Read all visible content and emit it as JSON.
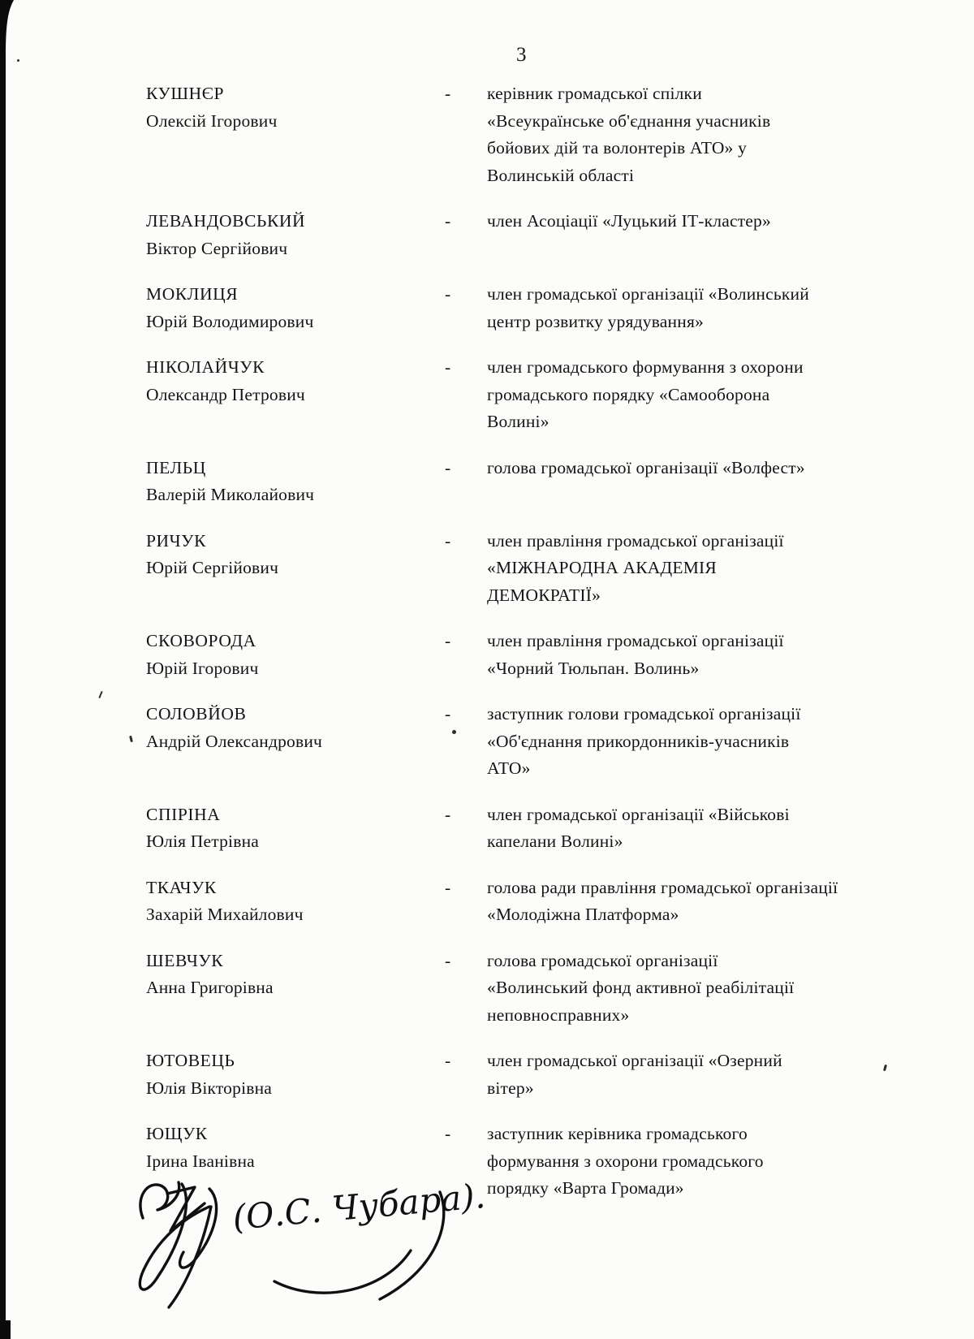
{
  "page": {
    "number": "3"
  },
  "colors": {
    "paper": "#fcfcfa",
    "ink": "#141414",
    "scan_edge": "#0b0b0b"
  },
  "entries": [
    {
      "surname": "КУШНЄР",
      "given": "Олексій Ігорович",
      "dash": "-",
      "role_lines": [
        "керівник громадської спілки",
        "«Всеукраїнське об'єднання учасників",
        "бойових дій та волонтерів АТО» у",
        "Волинській області"
      ]
    },
    {
      "surname": "ЛЕВАНДОВСЬКИЙ",
      "given": "Віктор Сергійович",
      "dash": "-",
      "role_lines": [
        "член Асоціації «Луцький ІТ-кластер»"
      ]
    },
    {
      "surname": "МОКЛИЦЯ",
      "given": "Юрій Володимирович",
      "dash": "-",
      "role_lines": [
        "член громадської організації «Волинський",
        "центр розвитку урядування»"
      ]
    },
    {
      "surname": "НІКОЛАЙЧУК",
      "given": "Олександр Петрович",
      "dash": "-",
      "role_lines": [
        "член громадського формування з охорони",
        "громадського порядку «Самооборона",
        "Волині»"
      ]
    },
    {
      "surname": "ПЕЛЬЦ",
      "given": "Валерій Миколайович",
      "dash": "-",
      "role_lines": [
        "голова громадської організації «Волфест»"
      ]
    },
    {
      "surname": "РИЧУК",
      "given": "Юрій Сергійович",
      "dash": "-",
      "role_lines": [
        "член правління громадської організації",
        "«МІЖНАРОДНА АКАДЕМІЯ",
        "ДЕМОКРАТІЇ»"
      ]
    },
    {
      "surname": "СКОВОРОДА",
      "given": "Юрій Ігорович",
      "dash": "-",
      "role_lines": [
        "член правління громадської організації",
        "«Чорний Тюльпан. Волинь»"
      ]
    },
    {
      "surname": "СОЛОВЙОВ",
      "given": "Андрій Олександрович",
      "dash": "-",
      "role_lines": [
        "заступник голови громадської організації",
        "«Об'єднання прикордонників-учасників",
        "АТО»"
      ]
    },
    {
      "surname": "СПІРІНА",
      "given": "Юлія Петрівна",
      "dash": "-",
      "role_lines": [
        "член громадської організації «Військові",
        "капелани Волині»"
      ]
    },
    {
      "surname": "ТКАЧУК",
      "given": "Захарій Михайлович",
      "dash": "-",
      "role_lines": [
        "голова ради правління громадської організації",
        "«Молодіжна Платформа»"
      ]
    },
    {
      "surname": "ШЕВЧУК",
      "given": "Анна Григорівна",
      "dash": "-",
      "role_lines": [
        "голова громадської організації",
        "«Волинський фонд активної реабілітації",
        "неповносправних»"
      ]
    },
    {
      "surname": "ЮТОВЕЦЬ",
      "given": "Юлія Вікторівна",
      "dash": "-",
      "role_lines": [
        "член громадської організації «Озерний",
        "вітер»"
      ]
    },
    {
      "surname": "ЮЩУК",
      "given": "Ірина Іванівна",
      "dash": "-",
      "role_lines": [
        "заступник керівника громадського",
        "формування з охорони громадського",
        "порядку «Варта Громади»"
      ]
    }
  ],
  "signature": {
    "name_text": "(О.С. Чубара)."
  }
}
